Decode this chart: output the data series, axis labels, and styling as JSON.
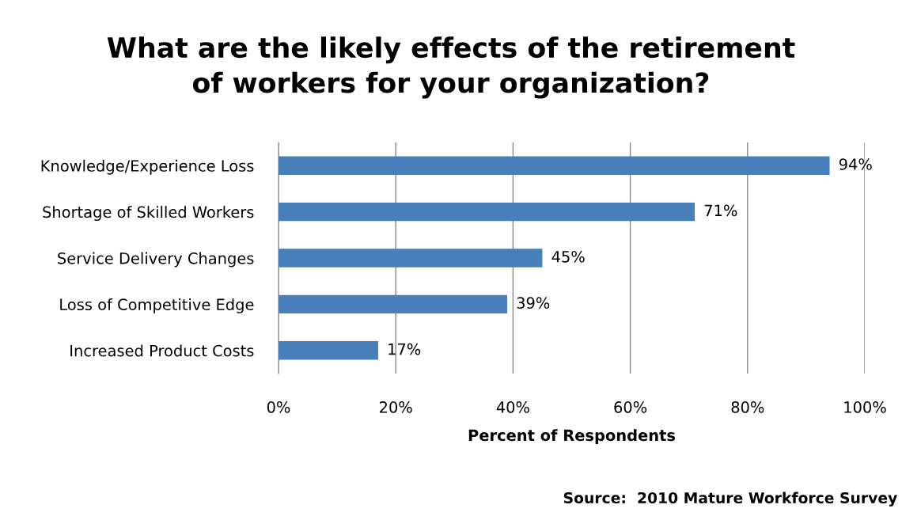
{
  "chart_data": {
    "type": "bar",
    "orientation": "horizontal",
    "title": "What are the likely effects of the retirement\nof workers for your organization?",
    "xlabel": "Percent of Respondents",
    "categories": [
      "Knowledge/Experience Loss",
      "Shortage of Skilled Workers",
      "Service Delivery Changes",
      "Loss of Competitive Edge",
      "Increased Product Costs"
    ],
    "values": [
      94,
      71,
      45,
      39,
      17
    ],
    "color": "#4a7ebb",
    "value_labels": [
      "94%",
      "71%",
      "45%",
      "39%",
      "17%"
    ],
    "xlim": [
      0,
      100
    ],
    "xticks": [
      {
        "value": 0,
        "label": "0%"
      },
      {
        "value": 20,
        "label": "20%"
      },
      {
        "value": 40,
        "label": "40%"
      },
      {
        "value": 60,
        "label": "60%"
      },
      {
        "value": 80,
        "label": "80%"
      },
      {
        "value": 100,
        "label": "100%"
      }
    ],
    "grid": "x",
    "legend": false,
    "annotations": [
      "Source:  2010 Mature Workforce Survey"
    ]
  }
}
